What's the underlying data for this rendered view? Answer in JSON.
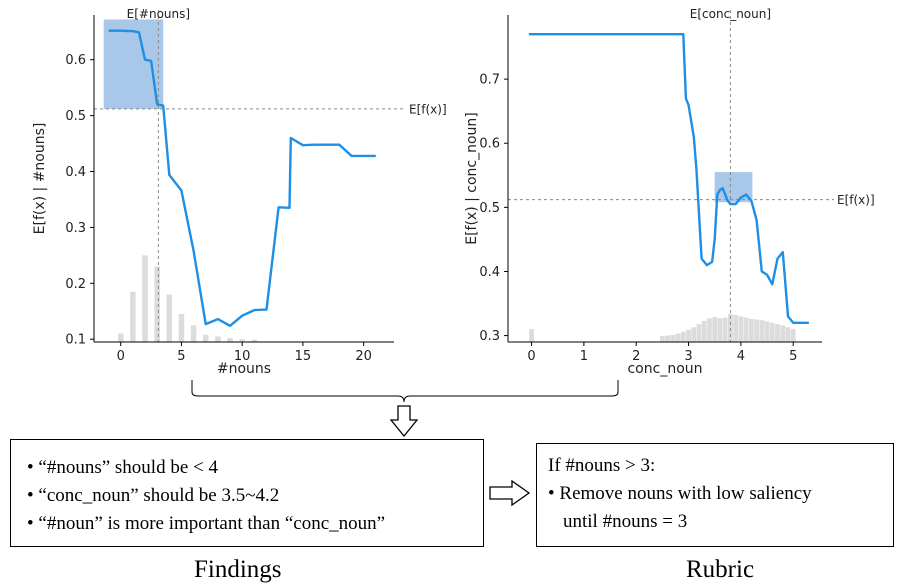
{
  "charts": [
    {
      "type": "line",
      "x": [
        -1,
        0,
        1,
        1.5,
        2,
        2.5,
        3,
        3.5,
        4,
        5,
        6,
        7,
        8,
        9,
        10,
        11,
        12,
        13,
        13.9,
        14,
        15,
        16,
        17,
        18,
        19,
        20,
        21
      ],
      "y": [
        0.652,
        0.652,
        0.651,
        0.649,
        0.6,
        0.598,
        0.52,
        0.518,
        0.394,
        0.366,
        0.258,
        0.127,
        0.136,
        0.124,
        0.142,
        0.152,
        0.153,
        0.336,
        0.335,
        0.46,
        0.447,
        0.448,
        0.448,
        0.448,
        0.428,
        0.428,
        0.428
      ],
      "xlim": [
        -2.2,
        22.5
      ],
      "ylim": [
        0.095,
        0.68
      ],
      "xticks": [
        0,
        5,
        10,
        15,
        20
      ],
      "yticks": [
        0.1,
        0.2,
        0.3,
        0.4,
        0.5,
        0.6
      ],
      "hist": [
        {
          "x": 0,
          "h": 0.11
        },
        {
          "x": 1,
          "h": 0.185
        },
        {
          "x": 2,
          "h": 0.25
        },
        {
          "x": 3,
          "h": 0.23
        },
        {
          "x": 4,
          "h": 0.18
        },
        {
          "x": 5,
          "h": 0.145
        },
        {
          "x": 6,
          "h": 0.125
        },
        {
          "x": 7,
          "h": 0.108
        },
        {
          "x": 8,
          "h": 0.105
        },
        {
          "x": 9,
          "h": 0.102
        },
        {
          "x": 10,
          "h": 0.1
        },
        {
          "x": 11,
          "h": 0.099
        }
      ],
      "hist_bar_width": 0.45,
      "expected_x": 3.1,
      "expected_fx": 0.512,
      "highlight": {
        "x0": -1.4,
        "x1": 3.5,
        "y0": 0.512,
        "y1": 0.672
      },
      "xlabel": "#nouns",
      "ylabel": "E[f(x) | #nouns]",
      "top_label": "E[#nouns]",
      "right_label": "E[f(x)]"
    },
    {
      "type": "line",
      "x": [
        -0.05,
        0.5,
        1,
        2,
        2.9,
        2.95,
        3.0,
        3.1,
        3.15,
        3.25,
        3.35,
        3.45,
        3.5,
        3.55,
        3.6,
        3.65,
        3.7,
        3.75,
        3.8,
        3.9,
        4.0,
        4.1,
        4.2,
        4.3,
        4.4,
        4.5,
        4.6,
        4.7,
        4.8,
        4.9,
        5.0,
        5.3
      ],
      "y": [
        0.77,
        0.77,
        0.77,
        0.77,
        0.77,
        0.67,
        0.66,
        0.61,
        0.56,
        0.42,
        0.41,
        0.415,
        0.45,
        0.52,
        0.527,
        0.53,
        0.52,
        0.51,
        0.505,
        0.505,
        0.515,
        0.52,
        0.51,
        0.48,
        0.4,
        0.395,
        0.38,
        0.42,
        0.43,
        0.33,
        0.32,
        0.32
      ],
      "xlim": [
        -0.45,
        5.55
      ],
      "ylim": [
        0.29,
        0.8
      ],
      "xticks": [
        0,
        1,
        2,
        3,
        4,
        5
      ],
      "yticks": [
        0.3,
        0.4,
        0.5,
        0.6,
        0.7
      ],
      "hist": [
        {
          "x": 0,
          "h": 0.31
        },
        {
          "x": 2.5,
          "h": 0.2995
        },
        {
          "x": 2.6,
          "h": 0.3
        },
        {
          "x": 2.7,
          "h": 0.301
        },
        {
          "x": 2.8,
          "h": 0.303
        },
        {
          "x": 2.9,
          "h": 0.306
        },
        {
          "x": 3.0,
          "h": 0.309
        },
        {
          "x": 3.1,
          "h": 0.313
        },
        {
          "x": 3.2,
          "h": 0.318
        },
        {
          "x": 3.3,
          "h": 0.323
        },
        {
          "x": 3.4,
          "h": 0.327
        },
        {
          "x": 3.5,
          "h": 0.329
        },
        {
          "x": 3.6,
          "h": 0.327
        },
        {
          "x": 3.7,
          "h": 0.328
        },
        {
          "x": 3.8,
          "h": 0.334
        },
        {
          "x": 3.9,
          "h": 0.332
        },
        {
          "x": 4.0,
          "h": 0.33
        },
        {
          "x": 4.1,
          "h": 0.328
        },
        {
          "x": 4.2,
          "h": 0.326
        },
        {
          "x": 4.3,
          "h": 0.325
        },
        {
          "x": 4.4,
          "h": 0.324
        },
        {
          "x": 4.5,
          "h": 0.322
        },
        {
          "x": 4.6,
          "h": 0.32
        },
        {
          "x": 4.7,
          "h": 0.318
        },
        {
          "x": 4.8,
          "h": 0.316
        },
        {
          "x": 4.9,
          "h": 0.313
        },
        {
          "x": 5.0,
          "h": 0.31
        }
      ],
      "hist_bar_width": 0.092,
      "expected_x": 3.8,
      "expected_fx": 0.512,
      "highlight": {
        "x0": 3.5,
        "x1": 4.22,
        "y0": 0.508,
        "y1": 0.555
      },
      "xlabel": "conc_noun",
      "ylabel": "E[f(x) | conc_noun]",
      "top_label": "E[conc_noun]",
      "right_label": "E[f(x)]"
    }
  ],
  "colors": {
    "line": "#1f8fe5",
    "highlight": "#7aa9dd",
    "hist": "#dcdcdc",
    "dashed": "#8a8a8a"
  },
  "findings": {
    "items": [
      "“#nouns” should be < 4",
      "“conc_noun” should be 3.5~4.2",
      "“#noun” is more important than “conc_noun”"
    ],
    "caption": "Findings"
  },
  "rubric": {
    "lines": [
      "If #nouns > 3:",
      "Remove nouns with low saliency",
      "until #nouns = 3"
    ],
    "caption": "Rubric"
  },
  "icons": {
    "down_arrow": "hollow-down-arrow-icon",
    "right_arrow": "hollow-right-arrow-icon"
  }
}
